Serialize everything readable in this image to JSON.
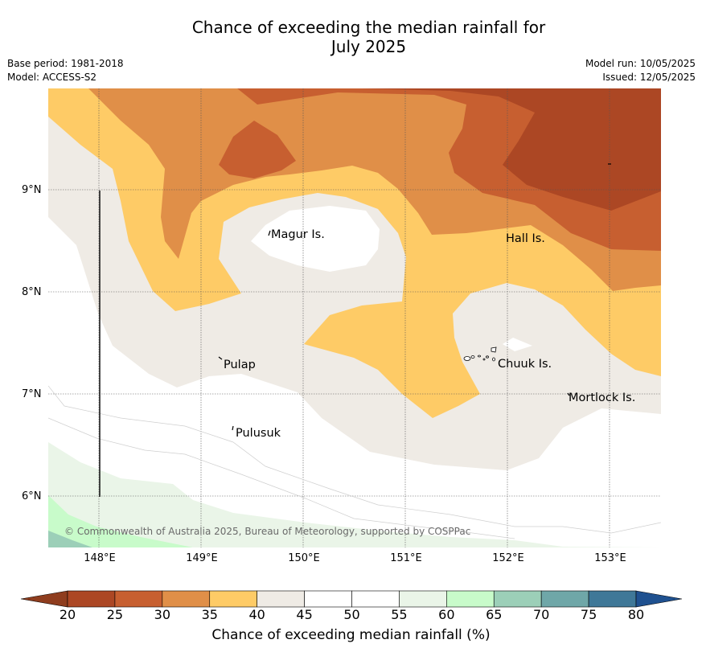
{
  "header": {
    "title_line1": "Chance of exceeding the median rainfall for",
    "title_line2": "July 2025",
    "base_period": "Base period: 1981-2018",
    "model": "Model: ACCESS-S2",
    "model_run": "Model run: 10/05/2025",
    "issued": "Issued: 12/05/2025"
  },
  "map": {
    "lat_labels": [
      "9°N",
      "8°N",
      "7°N",
      "6°N"
    ],
    "lon_labels": [
      "148°E",
      "149°E",
      "150°E",
      "151°E",
      "152°E",
      "153°E"
    ],
    "places": [
      "Magur Is.",
      "Hall Is.",
      "Pulap",
      "Chuuk Is.",
      "Mortlock Is.",
      "Pulusuk"
    ],
    "copyright": "© Commonwealth of Australia 2025, Bureau of Meteorology, supported by COSPPac"
  },
  "colorbar": {
    "title": "Chance of exceeding median rainfall (%)",
    "ticks": [
      "20",
      "25",
      "30",
      "35",
      "40",
      "45",
      "50",
      "55",
      "60",
      "65",
      "70",
      "75",
      "80"
    ],
    "colors": [
      "#ac4724",
      "#c75f30",
      "#e08f48",
      "#fecb66",
      "#efebe5",
      "#ffffff",
      "#ffffff",
      "#eaf5e8",
      "#c8fbca",
      "#9ccfb8",
      "#6fa7a8",
      "#3f7898"
    ],
    "under_color": "#8f3d1e",
    "over_color": "#1f5190"
  }
}
